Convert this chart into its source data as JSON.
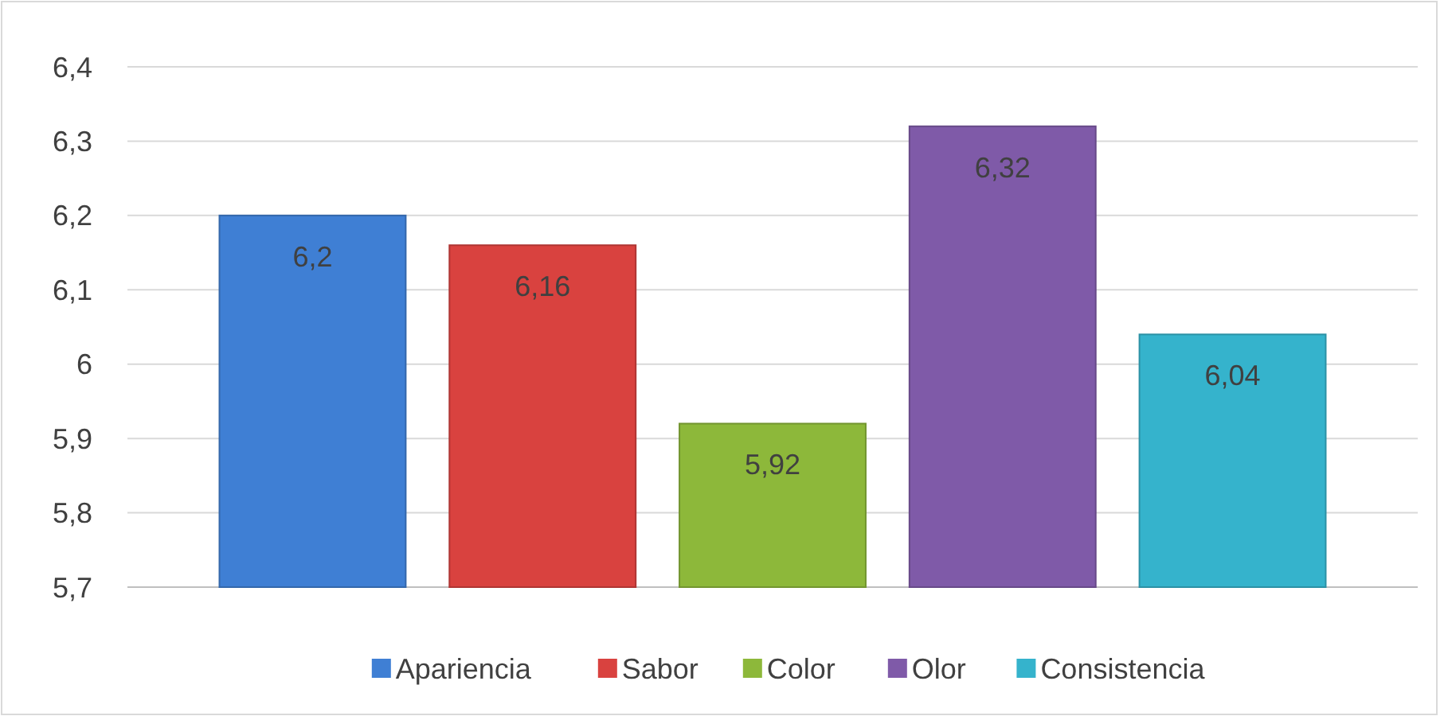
{
  "chart_data": {
    "type": "bar",
    "categories": [
      null
    ],
    "series": [
      {
        "name": "Apariencia",
        "color": "#3f7fd4",
        "values": [
          6.2
        ],
        "value_labels": [
          "6,2"
        ]
      },
      {
        "name": "Sabor",
        "color": "#d9423f",
        "values": [
          6.16
        ],
        "value_labels": [
          "6,16"
        ]
      },
      {
        "name": "Color",
        "color": "#8db83a",
        "values": [
          5.92
        ],
        "value_labels": [
          "5,92"
        ]
      },
      {
        "name": "Olor",
        "color": "#7f5aa8",
        "values": [
          6.32
        ],
        "value_labels": [
          "6,32"
        ]
      },
      {
        "name": "Consistencia",
        "color": "#35b3cc",
        "values": [
          6.04
        ],
        "value_labels": [
          "6,04"
        ]
      }
    ],
    "ylim": [
      5.7,
      6.4
    ],
    "yticks": [
      {
        "value": 5.7,
        "label": "5,7"
      },
      {
        "value": 5.8,
        "label": "5,8"
      },
      {
        "value": 5.9,
        "label": "5,9"
      },
      {
        "value": 6,
        "label": "6"
      },
      {
        "value": 6.1,
        "label": "6,1"
      },
      {
        "value": 6.2,
        "label": "6,2"
      },
      {
        "value": 6.3,
        "label": "6,3"
      },
      {
        "value": 6.4,
        "label": "6,4"
      }
    ],
    "grid": "y",
    "legend": "bottom"
  }
}
